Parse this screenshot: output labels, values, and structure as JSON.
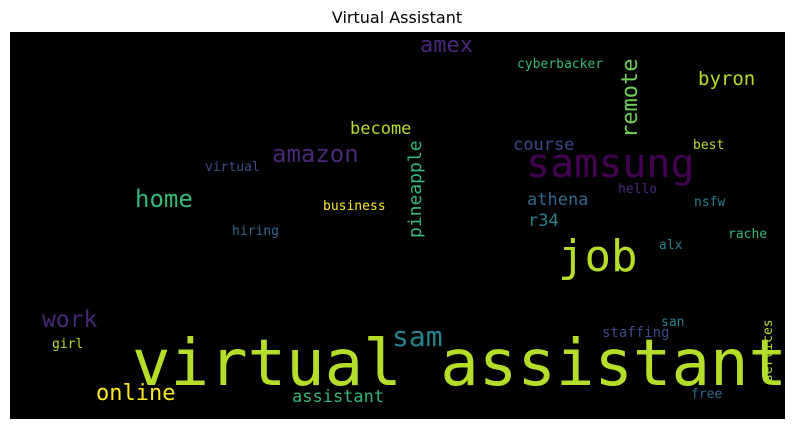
{
  "title": "Virtual Assistant",
  "words": [
    {
      "text": "virtual assistant",
      "color": "#b5de2b",
      "orientation": "horizontal"
    },
    {
      "text": "samsung",
      "color": "#440154",
      "orientation": "horizontal"
    },
    {
      "text": "job",
      "color": "#b5de2b",
      "orientation": "horizontal"
    },
    {
      "text": "amazon",
      "color": "#482878",
      "orientation": "horizontal"
    },
    {
      "text": "home",
      "color": "#35b779",
      "orientation": "horizontal"
    },
    {
      "text": "sam",
      "color": "#26828e",
      "orientation": "horizontal"
    },
    {
      "text": "work",
      "color": "#482878",
      "orientation": "horizontal"
    },
    {
      "text": "online",
      "color": "#fde725",
      "orientation": "horizontal"
    },
    {
      "text": "remote",
      "color": "#6ece58",
      "orientation": "vertical"
    },
    {
      "text": "pineapple",
      "color": "#35b779",
      "orientation": "vertical"
    },
    {
      "text": "amex",
      "color": "#482878",
      "orientation": "horizontal"
    },
    {
      "text": "byron",
      "color": "#b5de2b",
      "orientation": "horizontal"
    },
    {
      "text": "become",
      "color": "#b5de2b",
      "orientation": "horizontal"
    },
    {
      "text": "course",
      "color": "#3e4989",
      "orientation": "horizontal"
    },
    {
      "text": "athena",
      "color": "#31688e",
      "orientation": "horizontal"
    },
    {
      "text": "r34",
      "color": "#26828e",
      "orientation": "horizontal"
    },
    {
      "text": "assistant",
      "color": "#35b779",
      "orientation": "horizontal"
    },
    {
      "text": "cyberbacker",
      "color": "#35b779",
      "orientation": "horizontal"
    },
    {
      "text": "best",
      "color": "#b5de2b",
      "orientation": "horizontal"
    },
    {
      "text": "virtual",
      "color": "#3e4989",
      "orientation": "horizontal"
    },
    {
      "text": "business",
      "color": "#fde725",
      "orientation": "horizontal"
    },
    {
      "text": "hello",
      "color": "#482878",
      "orientation": "horizontal"
    },
    {
      "text": "nsfw",
      "color": "#26828e",
      "orientation": "horizontal"
    },
    {
      "text": "hiring",
      "color": "#31688e",
      "orientation": "horizontal"
    },
    {
      "text": "alx",
      "color": "#26828e",
      "orientation": "horizontal"
    },
    {
      "text": "rache",
      "color": "#35b779",
      "orientation": "horizontal"
    },
    {
      "text": "girl",
      "color": "#b5de2b",
      "orientation": "horizontal"
    },
    {
      "text": "staffing",
      "color": "#3e4989",
      "orientation": "horizontal"
    },
    {
      "text": "san",
      "color": "#26828e",
      "orientation": "horizontal"
    },
    {
      "text": "services",
      "color": "#b5de2b",
      "orientation": "vertical"
    },
    {
      "text": "free",
      "color": "#31688e",
      "orientation": "horizontal"
    }
  ]
}
